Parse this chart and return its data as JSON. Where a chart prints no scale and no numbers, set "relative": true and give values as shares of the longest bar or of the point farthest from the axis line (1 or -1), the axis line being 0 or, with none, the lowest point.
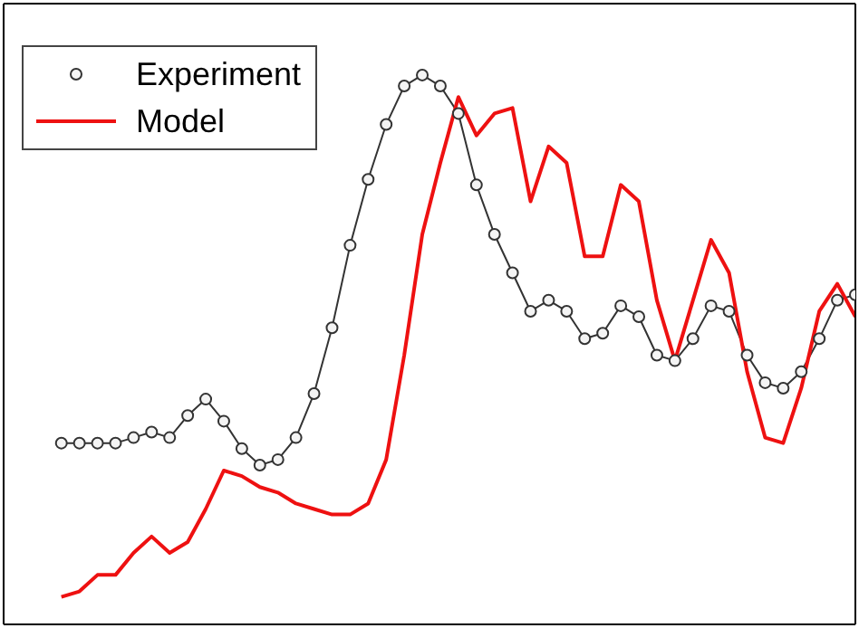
{
  "chart_data": {
    "type": "line",
    "relative": true,
    "legend": "top left",
    "categories": [
      null,
      null,
      null,
      null,
      null,
      null,
      null,
      null,
      null,
      null,
      null,
      null,
      null,
      null,
      null,
      null,
      null,
      null,
      null,
      null,
      null,
      null,
      null,
      null,
      null,
      null,
      null,
      null,
      null,
      null,
      null,
      null,
      null,
      null,
      null,
      null,
      null,
      null,
      null,
      null,
      null,
      null,
      null,
      null,
      null
    ],
    "series": [
      {
        "name": "Experiment",
        "color": "#333333",
        "marker": "circle",
        "values": [
          0.33,
          0.33,
          0.33,
          0.33,
          0.34,
          0.35,
          0.34,
          0.38,
          0.41,
          0.37,
          0.32,
          0.29,
          0.3,
          0.34,
          0.42,
          0.54,
          0.69,
          0.81,
          0.91,
          0.98,
          1.0,
          0.98,
          0.93,
          0.8,
          0.71,
          0.64,
          0.57,
          0.59,
          0.57,
          0.52,
          0.53,
          0.58,
          0.56,
          0.49,
          0.48,
          0.52,
          0.58,
          0.57,
          0.49,
          0.44,
          0.43,
          0.46,
          0.52,
          0.59,
          0.6
        ]
      },
      {
        "name": "Model",
        "color": "#ee1111",
        "values": [
          0.05,
          0.06,
          0.09,
          0.09,
          0.13,
          0.16,
          0.13,
          0.15,
          0.21,
          0.28,
          0.27,
          0.25,
          0.24,
          0.22,
          0.21,
          0.2,
          0.2,
          0.22,
          0.3,
          0.49,
          0.71,
          0.84,
          0.96,
          0.89,
          0.93,
          0.94,
          0.77,
          0.87,
          0.84,
          0.67,
          0.67,
          0.8,
          0.77,
          0.59,
          0.48,
          0.59,
          0.7,
          0.64,
          0.46,
          0.34,
          0.33,
          0.43,
          0.57,
          0.62,
          0.56
        ]
      }
    ]
  }
}
